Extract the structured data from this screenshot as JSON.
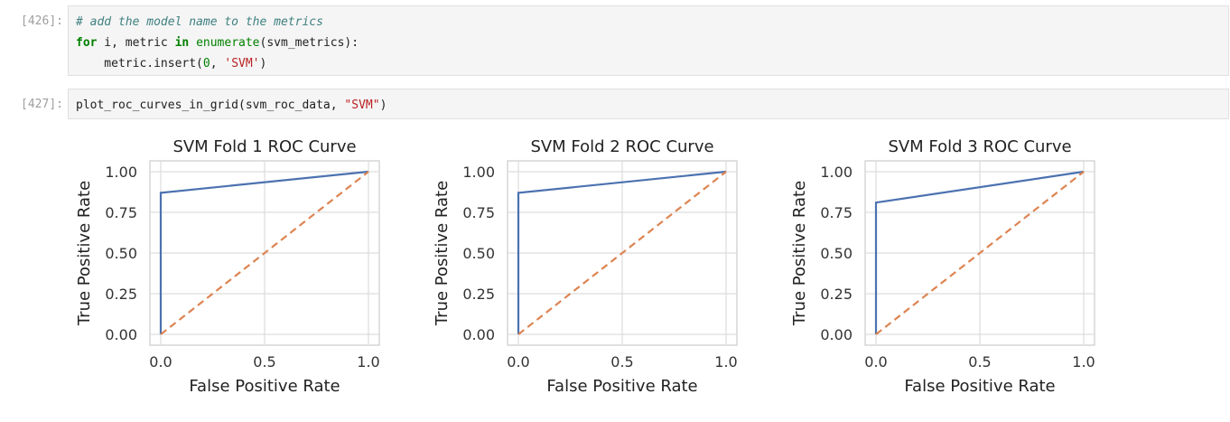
{
  "cells": [
    {
      "prompt": "[426]:",
      "lines": [
        [
          {
            "t": "# add the model name to the metrics",
            "c": "cm"
          }
        ],
        [
          {
            "t": "for",
            "c": "kw"
          },
          {
            "t": " i, metric ",
            "c": ""
          },
          {
            "t": "in",
            "c": "kw"
          },
          {
            "t": " ",
            "c": ""
          },
          {
            "t": "enumerate",
            "c": "bi"
          },
          {
            "t": "(svm_metrics):",
            "c": ""
          }
        ],
        [
          {
            "t": "    metric.insert(",
            "c": ""
          },
          {
            "t": "0",
            "c": "num"
          },
          {
            "t": ", ",
            "c": ""
          },
          {
            "t": "'SVM'",
            "c": "str"
          },
          {
            "t": ")",
            "c": ""
          }
        ]
      ]
    },
    {
      "prompt": "[427]:",
      "lines": [
        [
          {
            "t": "plot_roc_curves_in_grid(svm_roc_data, ",
            "c": ""
          },
          {
            "t": "\"SVM\"",
            "c": "str"
          },
          {
            "t": ")",
            "c": ""
          }
        ]
      ]
    }
  ],
  "chart_data": [
    {
      "type": "line",
      "title": "SVM Fold 1 ROC Curve",
      "xlabel": "False Positive Rate",
      "ylabel": "True Positive Rate",
      "xlim": [
        0.0,
        1.0
      ],
      "ylim": [
        0.0,
        1.0
      ],
      "xticks": [
        "0.0",
        "0.5",
        "1.0"
      ],
      "yticks": [
        "0.00",
        "0.25",
        "0.50",
        "0.75",
        "1.00"
      ],
      "grid": true,
      "series": [
        {
          "x": [
            0.0,
            0.0,
            1.0
          ],
          "y": [
            0.0,
            0.87,
            1.0
          ],
          "color": "#4c72b0",
          "style": "solid"
        },
        {
          "x": [
            0.0,
            1.0
          ],
          "y": [
            0.0,
            1.0
          ],
          "color": "#dd8452",
          "style": "dashed"
        }
      ]
    },
    {
      "type": "line",
      "title": "SVM Fold 2 ROC Curve",
      "xlabel": "False Positive Rate",
      "ylabel": "True Positive Rate",
      "xlim": [
        0.0,
        1.0
      ],
      "ylim": [
        0.0,
        1.0
      ],
      "xticks": [
        "0.0",
        "0.5",
        "1.0"
      ],
      "yticks": [
        "0.00",
        "0.25",
        "0.50",
        "0.75",
        "1.00"
      ],
      "grid": true,
      "series": [
        {
          "x": [
            0.0,
            0.0,
            1.0
          ],
          "y": [
            0.0,
            0.87,
            1.0
          ],
          "color": "#4c72b0",
          "style": "solid"
        },
        {
          "x": [
            0.0,
            1.0
          ],
          "y": [
            0.0,
            1.0
          ],
          "color": "#dd8452",
          "style": "dashed"
        }
      ]
    },
    {
      "type": "line",
      "title": "SVM Fold 3 ROC Curve",
      "xlabel": "False Positive Rate",
      "ylabel": "True Positive Rate",
      "xlim": [
        0.0,
        1.0
      ],
      "ylim": [
        0.0,
        1.0
      ],
      "xticks": [
        "0.0",
        "0.5",
        "1.0"
      ],
      "yticks": [
        "0.00",
        "0.25",
        "0.50",
        "0.75",
        "1.00"
      ],
      "grid": true,
      "series": [
        {
          "x": [
            0.0,
            0.0,
            1.0
          ],
          "y": [
            0.0,
            0.81,
            1.0
          ],
          "color": "#4c72b0",
          "style": "solid"
        },
        {
          "x": [
            0.0,
            1.0
          ],
          "y": [
            0.0,
            1.0
          ],
          "color": "#dd8452",
          "style": "dashed"
        }
      ]
    }
  ]
}
